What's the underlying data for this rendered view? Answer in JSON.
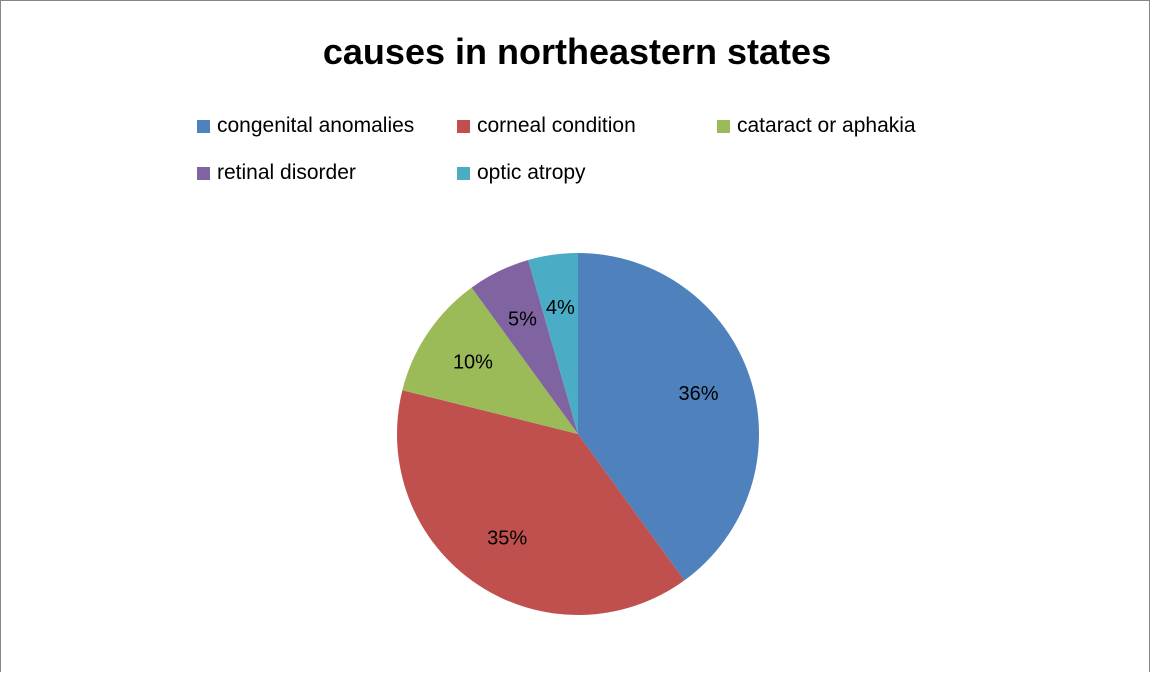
{
  "chart_data": {
    "type": "pie",
    "title": "causes in northeastern states",
    "categories": [
      "congenital anomalies",
      "corneal condition",
      "cataract or aphakia",
      "retinal disorder",
      "optic atropy"
    ],
    "values": [
      36,
      35,
      10,
      5,
      4
    ],
    "value_labels": [
      "36%",
      "35%",
      "10%",
      "5%",
      "4%"
    ],
    "colors": [
      "#4F81BD",
      "#C0504D",
      "#9BBB59",
      "#8064A2",
      "#4BACC6"
    ],
    "legend_position": "top"
  }
}
